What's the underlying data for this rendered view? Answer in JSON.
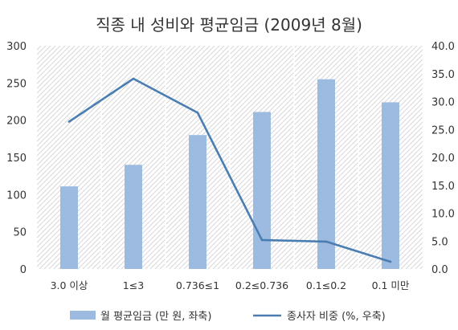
{
  "chart_data": {
    "type": "bar",
    "title": "직종 내 성비와 평균임금 (2009년 8월)",
    "categories": [
      "3.0 이상",
      "1≤3",
      "0.736≤1",
      "0.2≤0.736",
      "0.1≤0.2",
      "0.1 미만"
    ],
    "y_left": {
      "ticks": [
        "0",
        "50",
        "100",
        "150",
        "200",
        "250",
        "300"
      ],
      "ylim": [
        0,
        300
      ]
    },
    "y_right": {
      "ticks": [
        "0.0",
        "5.0",
        "10.0",
        "15.0",
        "20.0",
        "25.0",
        "30.0",
        "35.0",
        "40.0"
      ],
      "ylim": [
        0,
        40
      ]
    },
    "series": [
      {
        "name": "월 평균임금 (만 원, 좌축)",
        "type": "bar",
        "axis": "left",
        "color": "#9dbbe1",
        "values": [
          111,
          140,
          180,
          211,
          255,
          224
        ]
      },
      {
        "name": "종사자 비중 (%, 우축)",
        "type": "line",
        "axis": "right",
        "color": "#4a7eb2",
        "values": [
          26.4,
          34.1,
          28.0,
          5.2,
          4.9,
          1.3
        ]
      }
    ],
    "legend": "bottom",
    "grid": true,
    "gridlines_pattern": "diagonal-hatch",
    "colors": {
      "bar": "#9dbbe1",
      "line": "#4a7eb2",
      "hatch": "#d2d2d2",
      "text": "#333333"
    }
  }
}
